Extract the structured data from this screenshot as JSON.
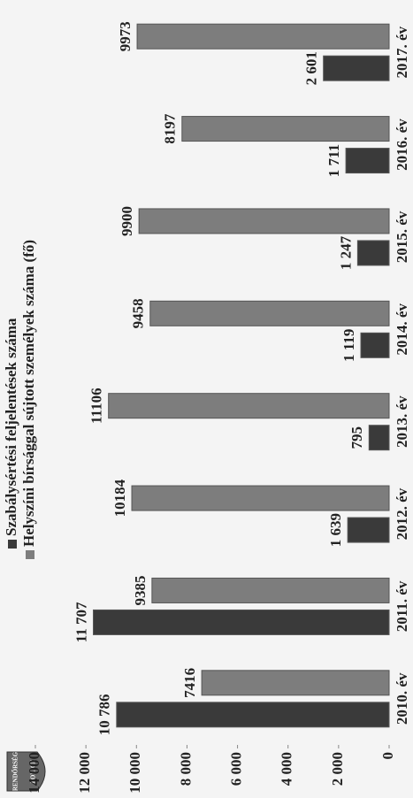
{
  "logo": [
    "RENDŐRSÉG",
    "POLICE"
  ],
  "chart_data": {
    "type": "bar",
    "categories": [
      "2010. év",
      "2011. év",
      "2012. év",
      "2013. év",
      "2014. év",
      "2015. év",
      "2016. év",
      "2017. év"
    ],
    "series": [
      {
        "name": "Szabálysértési feljelentések száma",
        "color": "#3a3a3a",
        "values": [
          10786,
          11707,
          1639,
          795,
          1119,
          1247,
          1711,
          2601
        ],
        "value_labels": [
          "10 786",
          "11 707",
          "1 639",
          "795",
          "1 119",
          "1 247",
          "1 711",
          "2 601"
        ]
      },
      {
        "name": "Helyszíni bírsággal sújtott személyek száma (fő)",
        "color": "#7d7d7d",
        "values": [
          7416,
          9385,
          10184,
          11106,
          9458,
          9900,
          8197,
          9973
        ]
      }
    ],
    "ylim": [
      0,
      14000
    ],
    "yticks": [
      0,
      {
        "value": 2000,
        "label": "2 000"
      },
      {
        "value": 4000,
        "label": "4 000"
      },
      {
        "value": 6000,
        "label": "6 000"
      },
      {
        "value": 8000,
        "label": "8 000"
      },
      {
        "value": 10000,
        "label": "10 000"
      },
      {
        "value": 12000,
        "label": "12 000"
      },
      {
        "value": 14000,
        "label": "14 000"
      }
    ],
    "grid": false,
    "legend": "top"
  }
}
